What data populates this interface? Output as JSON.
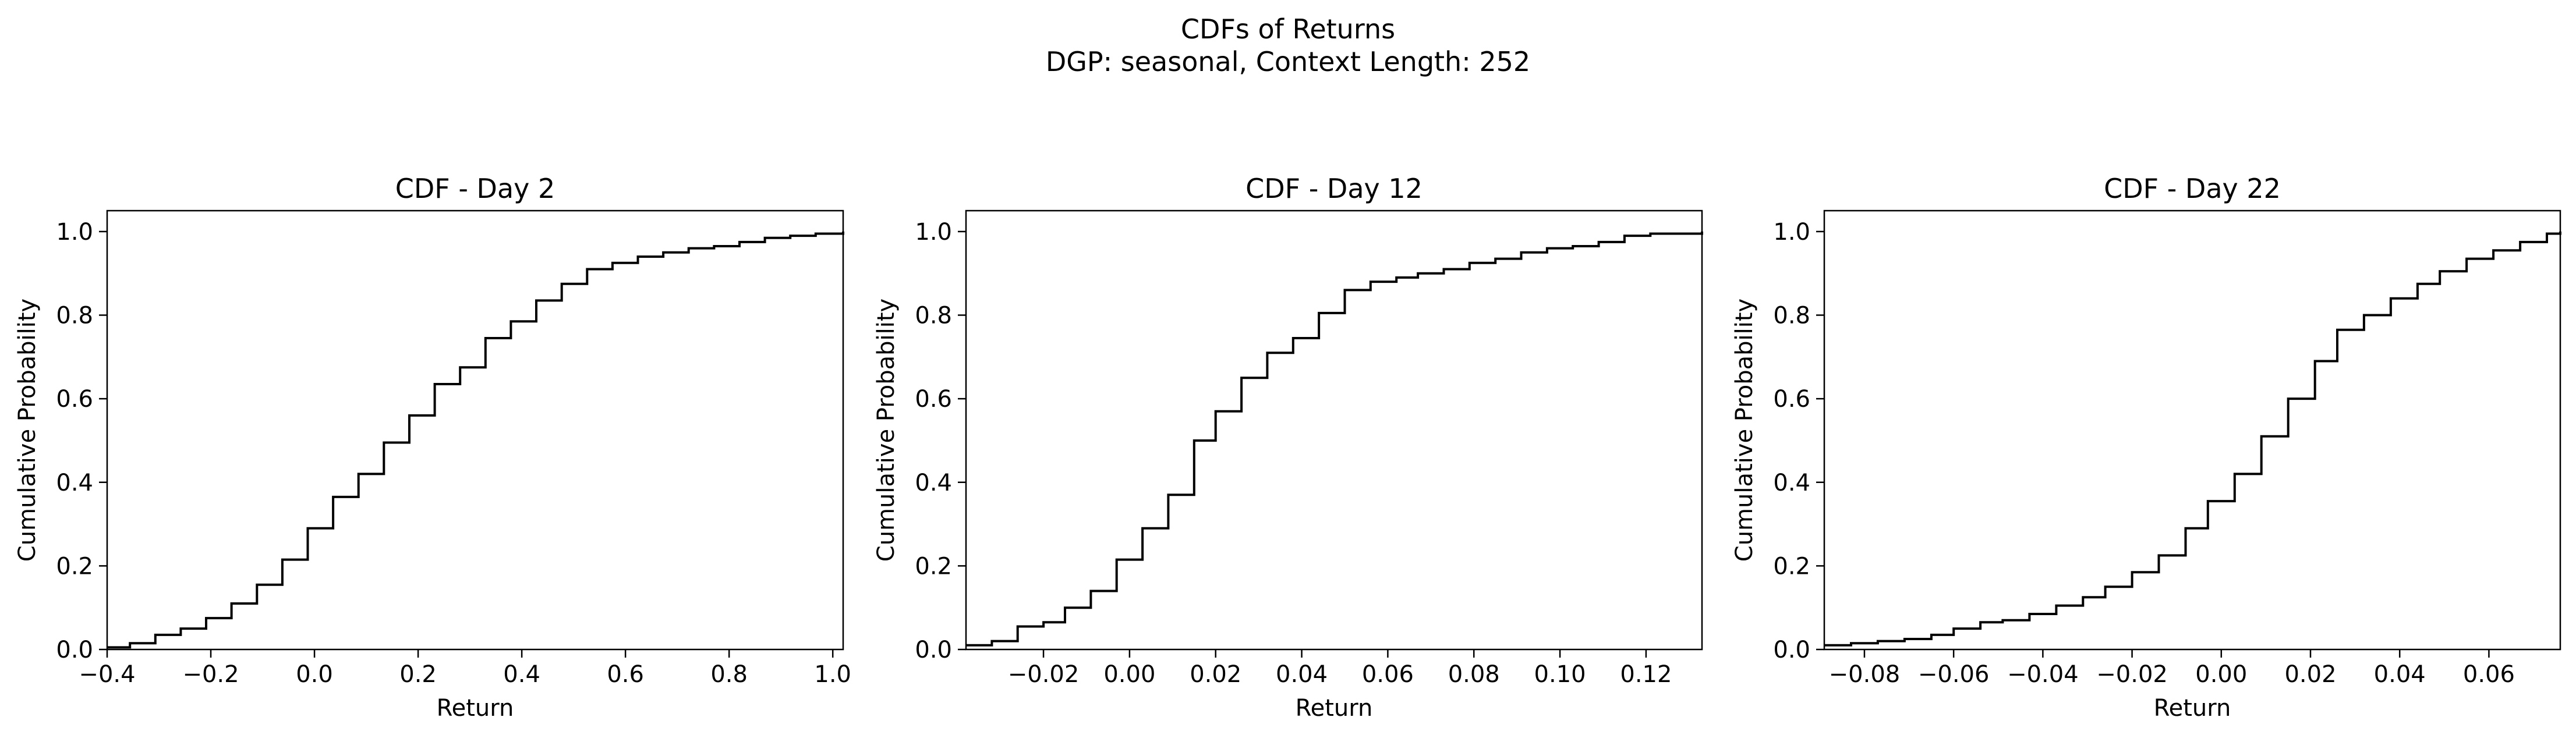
{
  "figure": {
    "title_line1": "CDFs of Returns",
    "title_line2": "DGP: seasonal, Context Length: 252"
  },
  "colors": {
    "line": "#000000",
    "axes": "#000000",
    "background": "#ffffff"
  },
  "chart_data": [
    {
      "type": "line",
      "drawstyle": "steps-post",
      "title": "CDF - Day 2",
      "xlabel": "Return",
      "ylabel": "Cumulative Probability",
      "xlim": [
        -0.4,
        1.02
      ],
      "ylim": [
        0.0,
        1.05
      ],
      "xticks": [
        -0.4,
        -0.2,
        0.0,
        0.2,
        0.4,
        0.6,
        0.8,
        1.0
      ],
      "xtick_labels": [
        "−0.4",
        "−0.2",
        "0.0",
        "0.2",
        "0.4",
        "0.6",
        "0.8",
        "1.0"
      ],
      "yticks": [
        0.0,
        0.2,
        0.4,
        0.6,
        0.8,
        1.0
      ],
      "ytick_labels": [
        "0.0",
        "0.2",
        "0.4",
        "0.6",
        "0.8",
        "1.0"
      ],
      "grid": false,
      "series": [
        {
          "x": [
            -0.4,
            -0.356,
            -0.307,
            -0.258,
            -0.209,
            -0.16,
            -0.111,
            -0.062,
            -0.013,
            0.036,
            0.085,
            0.134,
            0.183,
            0.232,
            0.281,
            0.33,
            0.379,
            0.428,
            0.477,
            0.526,
            0.575,
            0.624,
            0.673,
            0.722,
            0.771,
            0.82,
            0.869,
            0.918,
            0.967,
            1.02
          ],
          "y": [
            0.005,
            0.015,
            0.035,
            0.05,
            0.075,
            0.11,
            0.155,
            0.215,
            0.29,
            0.365,
            0.42,
            0.495,
            0.56,
            0.635,
            0.675,
            0.745,
            0.785,
            0.835,
            0.875,
            0.91,
            0.925,
            0.94,
            0.95,
            0.96,
            0.965,
            0.975,
            0.985,
            0.99,
            0.995,
            1.0
          ]
        }
      ]
    },
    {
      "type": "line",
      "drawstyle": "steps-post",
      "title": "CDF - Day 12",
      "xlabel": "Return",
      "ylabel": "Cumulative Probability",
      "xlim": [
        -0.038,
        0.133
      ],
      "ylim": [
        0.0,
        1.05
      ],
      "xticks": [
        -0.02,
        0.0,
        0.02,
        0.04,
        0.06,
        0.08,
        0.1,
        0.12
      ],
      "xtick_labels": [
        "−0.02",
        "0.00",
        "0.02",
        "0.04",
        "0.06",
        "0.08",
        "0.10",
        "0.12"
      ],
      "yticks": [
        0.0,
        0.2,
        0.4,
        0.6,
        0.8,
        1.0
      ],
      "ytick_labels": [
        "0.0",
        "0.2",
        "0.4",
        "0.6",
        "0.8",
        "1.0"
      ],
      "grid": false,
      "series": [
        {
          "x": [
            -0.038,
            -0.032,
            -0.026,
            -0.02,
            -0.015,
            -0.009,
            -0.003,
            0.003,
            0.009,
            0.015,
            0.02,
            0.026,
            0.032,
            0.038,
            0.044,
            0.05,
            0.056,
            0.062,
            0.067,
            0.073,
            0.079,
            0.085,
            0.091,
            0.097,
            0.103,
            0.109,
            0.115,
            0.121,
            0.133
          ],
          "y": [
            0.01,
            0.02,
            0.055,
            0.065,
            0.1,
            0.14,
            0.215,
            0.29,
            0.37,
            0.5,
            0.57,
            0.65,
            0.71,
            0.745,
            0.805,
            0.86,
            0.88,
            0.89,
            0.9,
            0.91,
            0.925,
            0.935,
            0.95,
            0.96,
            0.965,
            0.975,
            0.99,
            0.995,
            1.0
          ]
        }
      ]
    },
    {
      "type": "line",
      "drawstyle": "steps-post",
      "title": "CDF - Day 22",
      "xlabel": "Return",
      "ylabel": "Cumulative Probability",
      "xlim": [
        -0.089,
        0.076
      ],
      "ylim": [
        0.0,
        1.05
      ],
      "xticks": [
        -0.08,
        -0.06,
        -0.04,
        -0.02,
        0.0,
        0.02,
        0.04,
        0.06
      ],
      "xtick_labels": [
        "−0.08",
        "−0.06",
        "−0.04",
        "−0.02",
        "0.00",
        "0.02",
        "0.04",
        "0.06"
      ],
      "yticks": [
        0.0,
        0.2,
        0.4,
        0.6,
        0.8,
        1.0
      ],
      "ytick_labels": [
        "0.0",
        "0.2",
        "0.4",
        "0.6",
        "0.8",
        "1.0"
      ],
      "grid": false,
      "series": [
        {
          "x": [
            -0.089,
            -0.083,
            -0.077,
            -0.071,
            -0.065,
            -0.06,
            -0.054,
            -0.049,
            -0.043,
            -0.037,
            -0.031,
            -0.026,
            -0.02,
            -0.014,
            -0.008,
            -0.003,
            0.003,
            0.009,
            0.015,
            0.021,
            0.026,
            0.032,
            0.038,
            0.044,
            0.049,
            0.055,
            0.061,
            0.067,
            0.073,
            0.076
          ],
          "y": [
            0.01,
            0.015,
            0.02,
            0.025,
            0.035,
            0.05,
            0.065,
            0.07,
            0.085,
            0.105,
            0.125,
            0.15,
            0.185,
            0.225,
            0.29,
            0.355,
            0.42,
            0.51,
            0.6,
            0.69,
            0.765,
            0.8,
            0.84,
            0.875,
            0.905,
            0.935,
            0.955,
            0.975,
            0.995,
            1.0
          ]
        }
      ]
    }
  ]
}
